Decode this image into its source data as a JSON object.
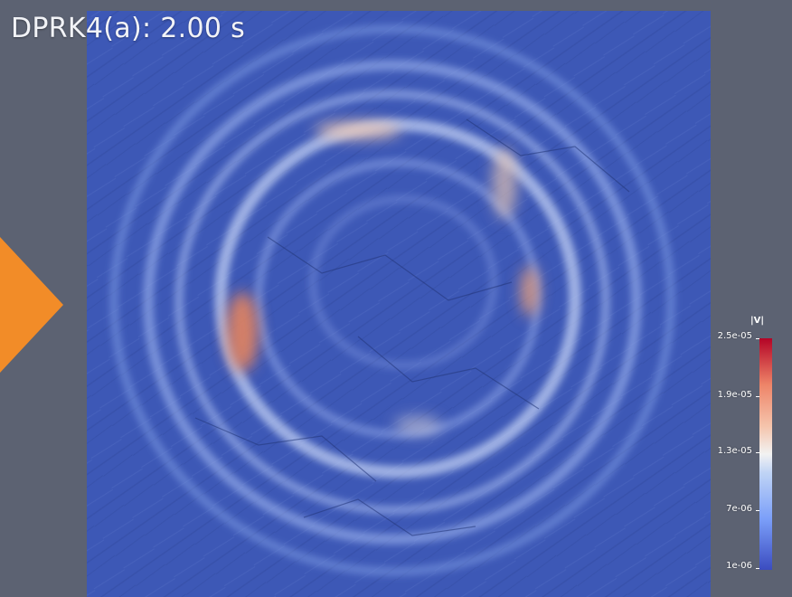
{
  "title": "DPRK4(a): 2.00 s",
  "colorbar": {
    "label": "|V|",
    "ticks": [
      "2.5e-05",
      "1.9e-05",
      "1.3e-05",
      "7e-06",
      "1e-06"
    ],
    "min_color": "#3b4cc0",
    "mid_color": "#f2f2f2",
    "max_color": "#b40426"
  },
  "colors": {
    "background": "#5c6272",
    "field_base": "#3f59b7",
    "play_arrow": "#f28c28"
  },
  "icons": {
    "play": "play-arrow-icon"
  }
}
